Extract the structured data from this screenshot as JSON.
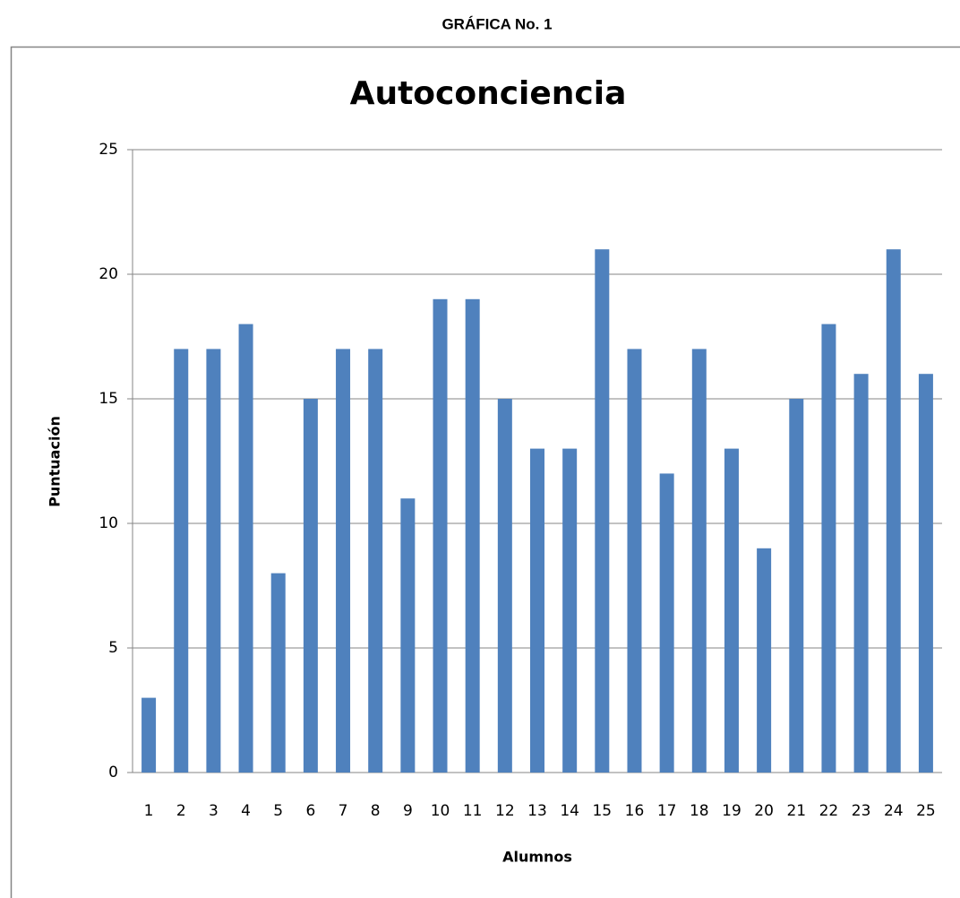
{
  "header": "GRÁFICA No. 1",
  "chart_data": {
    "type": "bar",
    "title": "Autoconciencia",
    "x_label": "Alumnos",
    "y_label": "Puntuación",
    "categories": [
      "1",
      "2",
      "3",
      "4",
      "5",
      "6",
      "7",
      "8",
      "9",
      "10",
      "11",
      "12",
      "13",
      "14",
      "15",
      "16",
      "17",
      "18",
      "19",
      "20",
      "21",
      "22",
      "23",
      "24",
      "25"
    ],
    "values": [
      3,
      17,
      17,
      18,
      8,
      15,
      17,
      17,
      11,
      19,
      19,
      15,
      13,
      13,
      21,
      17,
      12,
      17,
      13,
      9,
      15,
      18,
      16,
      21,
      16
    ],
    "color": "#4f81bd",
    "ylim": [
      0,
      25
    ],
    "yticks": [
      0,
      5,
      10,
      15,
      20,
      25
    ],
    "grid": true
  }
}
